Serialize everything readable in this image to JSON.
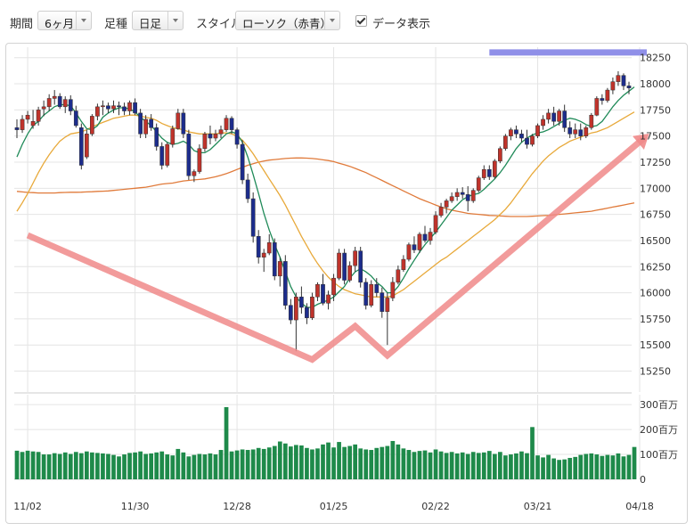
{
  "toolbar": {
    "period_label": "期間",
    "period_value": "6ヶ月",
    "bar_type_label": "足種",
    "bar_type_value": "日足",
    "style_label": "スタイル",
    "style_value": "ローソク（赤青）",
    "data_display_label": "データ表示",
    "data_display_checked": true
  },
  "chart_data": {
    "type": "candlestick",
    "price_axis": {
      "ticks": [
        15250,
        15500,
        15750,
        16000,
        16250,
        16500,
        16750,
        17000,
        17250,
        17500,
        17750,
        18000,
        18250
      ],
      "labels": [
        "15250",
        "15500",
        "15750",
        "16000",
        "16250",
        "16500",
        "16750",
        "17000",
        "17250",
        "17500",
        "17750",
        "18000",
        "18250"
      ],
      "range": [
        15050,
        18350
      ]
    },
    "volume_axis": {
      "ticks": [
        0,
        100,
        200,
        300
      ],
      "labels": [
        "0",
        "100百万",
        "200百万",
        "300百万"
      ],
      "range": [
        0,
        340
      ]
    },
    "x_tick_labels": [
      "11/02",
      "11/30",
      "12/28",
      "01/25",
      "02/22",
      "03/21",
      "04/18"
    ],
    "x_tick_indices": [
      2,
      22,
      41,
      59,
      78,
      97,
      116
    ],
    "resistance_line": 18300,
    "colors": {
      "up": "#c0332b",
      "down": "#1c2c8c",
      "volume": "#1e8a4a",
      "ma_short": "#1f8a58",
      "ma_mid": "#e8a93a",
      "ma_long": "#e07a3a",
      "resistance": "#8f8fe8",
      "annotation_v": "#f08a8a",
      "annotation_arrow": "#f08a8a"
    },
    "annotation_v_prices": [
      [
        16550,
        2
      ],
      [
        15360,
        55
      ],
      [
        15680,
        63
      ],
      [
        15400,
        69
      ],
      [
        17490,
        117
      ]
    ],
    "candles": [
      [
        17580,
        17660,
        17480,
        17560
      ],
      [
        17560,
        17700,
        17530,
        17660
      ],
      [
        17660,
        17740,
        17620,
        17700
      ],
      [
        17600,
        17750,
        17570,
        17640
      ],
      [
        17640,
        17780,
        17600,
        17750
      ],
      [
        17760,
        17840,
        17690,
        17780
      ],
      [
        17780,
        17900,
        17740,
        17860
      ],
      [
        17860,
        17940,
        17800,
        17880
      ],
      [
        17880,
        17910,
        17760,
        17780
      ],
      [
        17780,
        17880,
        17720,
        17850
      ],
      [
        17850,
        17890,
        17700,
        17740
      ],
      [
        17740,
        17790,
        17580,
        17600
      ],
      [
        17580,
        17620,
        17180,
        17220
      ],
      [
        17300,
        17560,
        17280,
        17520
      ],
      [
        17520,
        17710,
        17500,
        17690
      ],
      [
        17690,
        17810,
        17650,
        17780
      ],
      [
        17780,
        17840,
        17700,
        17790
      ],
      [
        17790,
        17820,
        17720,
        17760
      ],
      [
        17760,
        17840,
        17720,
        17790
      ],
      [
        17790,
        17830,
        17700,
        17780
      ],
      [
        17780,
        17820,
        17700,
        17740
      ],
      [
        17740,
        17840,
        17700,
        17820
      ],
      [
        17820,
        17860,
        17700,
        17720
      ],
      [
        17720,
        17760,
        17480,
        17520
      ],
      [
        17520,
        17700,
        17480,
        17660
      ],
      [
        17660,
        17710,
        17550,
        17580
      ],
      [
        17580,
        17620,
        17360,
        17400
      ],
      [
        17400,
        17440,
        17180,
        17220
      ],
      [
        17220,
        17440,
        17200,
        17420
      ],
      [
        17420,
        17600,
        17390,
        17570
      ],
      [
        17570,
        17760,
        17560,
        17720
      ],
      [
        17720,
        17760,
        17480,
        17520
      ],
      [
        17520,
        17560,
        17080,
        17120
      ],
      [
        17120,
        17180,
        17060,
        17160
      ],
      [
        17160,
        17420,
        17140,
        17380
      ],
      [
        17380,
        17540,
        17350,
        17520
      ],
      [
        17520,
        17600,
        17420,
        17480
      ],
      [
        17480,
        17560,
        17450,
        17520
      ],
      [
        17520,
        17600,
        17480,
        17560
      ],
      [
        17560,
        17700,
        17540,
        17670
      ],
      [
        17670,
        17690,
        17520,
        17560
      ],
      [
        17560,
        17580,
        17380,
        17420
      ],
      [
        17420,
        17460,
        17040,
        17080
      ],
      [
        17080,
        17140,
        16860,
        16900
      ],
      [
        16900,
        16960,
        16480,
        16540
      ],
      [
        16540,
        16600,
        16280,
        16340
      ],
      [
        16340,
        16420,
        16200,
        16380
      ],
      [
        16380,
        16560,
        16360,
        16480
      ],
      [
        16480,
        16520,
        16120,
        16160
      ],
      [
        16160,
        16340,
        16060,
        16300
      ],
      [
        16300,
        16360,
        15840,
        15880
      ],
      [
        15880,
        15940,
        15700,
        15740
      ],
      [
        15740,
        16000,
        15440,
        15960
      ],
      [
        15960,
        16060,
        15800,
        15860
      ],
      [
        15860,
        15900,
        15700,
        15760
      ],
      [
        15760,
        16000,
        15740,
        15960
      ],
      [
        15960,
        16100,
        15920,
        16080
      ],
      [
        16080,
        16180,
        15880,
        15900
      ],
      [
        15900,
        16020,
        15840,
        15980
      ],
      [
        15980,
        16180,
        15920,
        16140
      ],
      [
        16140,
        16420,
        16120,
        16380
      ],
      [
        16380,
        16420,
        16080,
        16120
      ],
      [
        16120,
        16300,
        16100,
        16260
      ],
      [
        16260,
        16440,
        16200,
        16400
      ],
      [
        16400,
        16440,
        16050,
        16100
      ],
      [
        16100,
        16140,
        15840,
        15880
      ],
      [
        15880,
        16120,
        15860,
        16080
      ],
      [
        16080,
        16140,
        15960,
        16000
      ],
      [
        16000,
        16050,
        15760,
        15820
      ],
      [
        15820,
        16000,
        15500,
        15950
      ],
      [
        15950,
        16150,
        15920,
        16100
      ],
      [
        16100,
        16260,
        16080,
        16220
      ],
      [
        16220,
        16360,
        16200,
        16320
      ],
      [
        16320,
        16480,
        16300,
        16460
      ],
      [
        16460,
        16540,
        16380,
        16410
      ],
      [
        16410,
        16580,
        16380,
        16560
      ],
      [
        16560,
        16640,
        16480,
        16500
      ],
      [
        16500,
        16620,
        16460,
        16580
      ],
      [
        16580,
        16780,
        16560,
        16740
      ],
      [
        16740,
        16860,
        16720,
        16820
      ],
      [
        16820,
        16900,
        16760,
        16880
      ],
      [
        16880,
        16960,
        16860,
        16920
      ],
      [
        16920,
        17000,
        16880,
        16960
      ],
      [
        16960,
        17010,
        16900,
        16940
      ],
      [
        16940,
        17020,
        16780,
        16880
      ],
      [
        16880,
        17000,
        16860,
        16980
      ],
      [
        16980,
        17120,
        16960,
        17100
      ],
      [
        17100,
        17220,
        17080,
        17180
      ],
      [
        17180,
        17220,
        17080,
        17110
      ],
      [
        17110,
        17280,
        17090,
        17260
      ],
      [
        17260,
        17400,
        17240,
        17380
      ],
      [
        17380,
        17520,
        17360,
        17500
      ],
      [
        17500,
        17580,
        17460,
        17560
      ],
      [
        17560,
        17600,
        17480,
        17520
      ],
      [
        17520,
        17560,
        17440,
        17480
      ],
      [
        17480,
        17560,
        17380,
        17420
      ],
      [
        17420,
        17520,
        17400,
        17500
      ],
      [
        17500,
        17620,
        17480,
        17600
      ],
      [
        17600,
        17700,
        17560,
        17660
      ],
      [
        17660,
        17760,
        17620,
        17720
      ],
      [
        17720,
        17780,
        17600,
        17640
      ],
      [
        17640,
        17760,
        17600,
        17740
      ],
      [
        17740,
        17800,
        17540,
        17580
      ],
      [
        17580,
        17640,
        17480,
        17520
      ],
      [
        17520,
        17620,
        17480,
        17560
      ],
      [
        17560,
        17620,
        17460,
        17500
      ],
      [
        17500,
        17600,
        17480,
        17580
      ],
      [
        17580,
        17720,
        17560,
        17700
      ],
      [
        17700,
        17880,
        17690,
        17860
      ],
      [
        17860,
        17900,
        17800,
        17840
      ],
      [
        17840,
        17960,
        17820,
        17940
      ],
      [
        17940,
        18060,
        17900,
        18020
      ],
      [
        18020,
        18120,
        17980,
        18080
      ],
      [
        18080,
        18100,
        17940,
        17980
      ],
      [
        17980,
        18020,
        17900,
        17960
      ]
    ],
    "ma_short": [
      17300,
      17420,
      17520,
      17600,
      17640,
      17700,
      17740,
      17780,
      17800,
      17800,
      17790,
      17720,
      17640,
      17570,
      17560,
      17600,
      17680,
      17720,
      17750,
      17770,
      17770,
      17760,
      17730,
      17680,
      17640,
      17600,
      17540,
      17480,
      17440,
      17420,
      17430,
      17450,
      17420,
      17360,
      17340,
      17340,
      17370,
      17420,
      17470,
      17520,
      17540,
      17520,
      17440,
      17300,
      17130,
      16950,
      16760,
      16600,
      16460,
      16340,
      16200,
      16060,
      15960,
      15900,
      15860,
      15860,
      15890,
      15910,
      15930,
      15960,
      16010,
      16060,
      16140,
      16200,
      16230,
      16200,
      16160,
      16100,
      16060,
      16000,
      16000,
      16060,
      16140,
      16230,
      16310,
      16390,
      16460,
      16520,
      16580,
      16650,
      16720,
      16790,
      16840,
      16890,
      16920,
      16940,
      16950,
      16990,
      17040,
      17090,
      17150,
      17220,
      17300,
      17380,
      17440,
      17480,
      17510,
      17530,
      17540,
      17560,
      17590,
      17620,
      17650,
      17670,
      17660,
      17640,
      17610,
      17590,
      17600,
      17640,
      17710,
      17780,
      17840,
      17890,
      17930,
      17970
    ],
    "ma_mid": [
      16780,
      16860,
      16950,
      17050,
      17150,
      17240,
      17320,
      17390,
      17450,
      17490,
      17520,
      17530,
      17540,
      17560,
      17590,
      17610,
      17630,
      17650,
      17670,
      17680,
      17690,
      17700,
      17700,
      17690,
      17680,
      17670,
      17650,
      17620,
      17600,
      17580,
      17570,
      17560,
      17540,
      17530,
      17520,
      17520,
      17520,
      17520,
      17530,
      17530,
      17520,
      17500,
      17460,
      17400,
      17330,
      17250,
      17170,
      17090,
      17010,
      16930,
      16840,
      16740,
      16640,
      16540,
      16450,
      16360,
      16280,
      16210,
      16150,
      16100,
      16060,
      16030,
      16010,
      15990,
      15980,
      15970,
      15960,
      15960,
      15960,
      15960,
      15970,
      16000,
      16030,
      16070,
      16110,
      16150,
      16190,
      16230,
      16270,
      16310,
      16340,
      16380,
      16420,
      16460,
      16500,
      16540,
      16580,
      16620,
      16660,
      16700,
      16750,
      16800,
      16860,
      16930,
      17000,
      17070,
      17140,
      17200,
      17260,
      17310,
      17350,
      17390,
      17420,
      17450,
      17470,
      17490,
      17510,
      17530,
      17540,
      17560,
      17580,
      17610,
      17640,
      17670,
      17700,
      17730
    ],
    "ma_long": [
      16970,
      16965,
      16960,
      16958,
      16955,
      16955,
      16955,
      16955,
      16958,
      16960,
      16962,
      16962,
      16963,
      16965,
      16967,
      16970,
      16972,
      16975,
      16980,
      16985,
      16990,
      16995,
      17000,
      17005,
      17010,
      17020,
      17030,
      17040,
      17045,
      17050,
      17060,
      17070,
      17075,
      17080,
      17085,
      17090,
      17100,
      17110,
      17125,
      17140,
      17160,
      17180,
      17200,
      17220,
      17235,
      17250,
      17260,
      17270,
      17275,
      17280,
      17285,
      17288,
      17290,
      17290,
      17288,
      17285,
      17280,
      17272,
      17265,
      17255,
      17240,
      17225,
      17210,
      17190,
      17170,
      17150,
      17125,
      17100,
      17075,
      17050,
      17025,
      17000,
      16975,
      16950,
      16925,
      16900,
      16880,
      16860,
      16840,
      16820,
      16805,
      16790,
      16780,
      16770,
      16760,
      16755,
      16750,
      16745,
      16740,
      16738,
      16735,
      16732,
      16730,
      16730,
      16730,
      16730,
      16732,
      16735,
      16738,
      16740,
      16745,
      16750,
      16755,
      16760,
      16765,
      16770,
      16775,
      16780,
      16790,
      16800,
      16810,
      16820,
      16830,
      16840,
      16850,
      16860
    ],
    "volumes": [
      115,
      110,
      115,
      112,
      110,
      100,
      100,
      105,
      102,
      108,
      102,
      110,
      105,
      112,
      108,
      106,
      104,
      102,
      98,
      92,
      100,
      106,
      108,
      112,
      102,
      104,
      108,
      112,
      100,
      96,
      122,
      108,
      92,
      98,
      102,
      100,
      104,
      100,
      118,
      290,
      112,
      116,
      120,
      118,
      120,
      126,
      122,
      128,
      134,
      152,
      144,
      132,
      138,
      136,
      126,
      120,
      124,
      140,
      148,
      128,
      150,
      130,
      134,
      140,
      124,
      120,
      118,
      126,
      130,
      134,
      154,
      140,
      124,
      118,
      110,
      114,
      116,
      108,
      120,
      112,
      106,
      110,
      104,
      108,
      102,
      110,
      106,
      108,
      114,
      102,
      110,
      96,
      100,
      104,
      112,
      105,
      210,
      96,
      88,
      98,
      84,
      78,
      80,
      86,
      90,
      98,
      102,
      104,
      100,
      94,
      98,
      96,
      104,
      92,
      98,
      130
    ]
  }
}
